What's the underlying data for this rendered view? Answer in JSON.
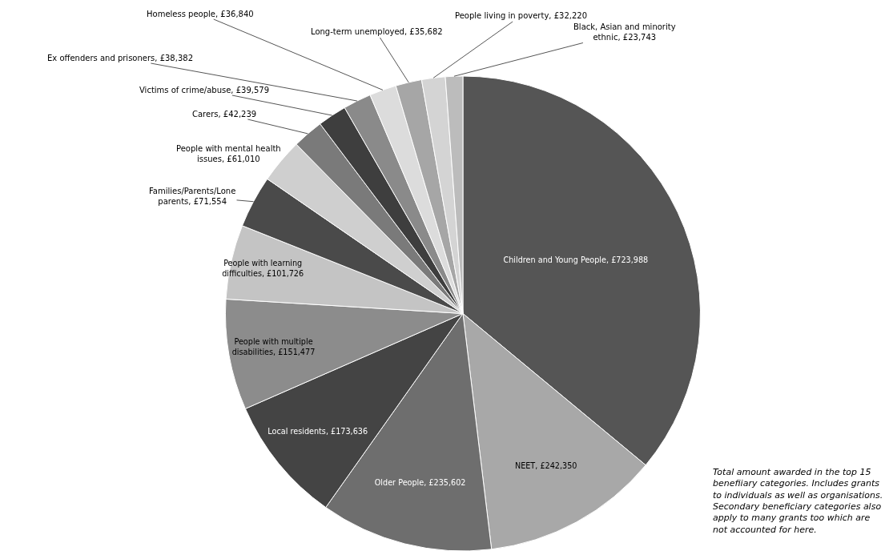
{
  "chart_data": {
    "type": "pie",
    "categories": [
      "Children and Young People",
      "NEET",
      "Older People",
      "Local residents",
      "People with multiple disabilities",
      "People with learning difficulties",
      "Families/Parents/Lone parents",
      "People with mental health issues",
      "Carers",
      "Victims of crime/abuse",
      "Ex offenders and prisoners",
      "Homeless people",
      "Long-term unemployed",
      "People living in poverty",
      "Black, Asian and minority ethnic"
    ],
    "values": [
      723988,
      242350,
      235602,
      173636,
      151477,
      101726,
      71554,
      61010,
      42239,
      39579,
      38382,
      36840,
      35682,
      32220,
      23743
    ],
    "colors": [
      "#555555",
      "#a8a8a8",
      "#6e6e6e",
      "#444444",
      "#8c8c8c",
      "#c4c4c4",
      "#4a4a4a",
      "#cfcfcf",
      "#7a7a7a",
      "#3e3e3e",
      "#8a8a8a",
      "#dcdcdc",
      "#a6a6a6",
      "#d4d4d4",
      "#bcbcbc"
    ],
    "value_labels": [
      "£723,988",
      "£242,350",
      "£235,602",
      "£173,636",
      "£151,477",
      "£101,726",
      "£71,554",
      "£61,010",
      "£42,239",
      "£39,579",
      "£38,382",
      "£36,840",
      "£35,682",
      "£32,220",
      "£23,743"
    ],
    "annotations": [
      "Total amount awarded in the top 15\nbenefiiary categories. Includes grants\nto individuals as well as organisations.\nSecondary beneficiary categories also\napply to many grants too which are\nnot accounted for here."
    ]
  }
}
